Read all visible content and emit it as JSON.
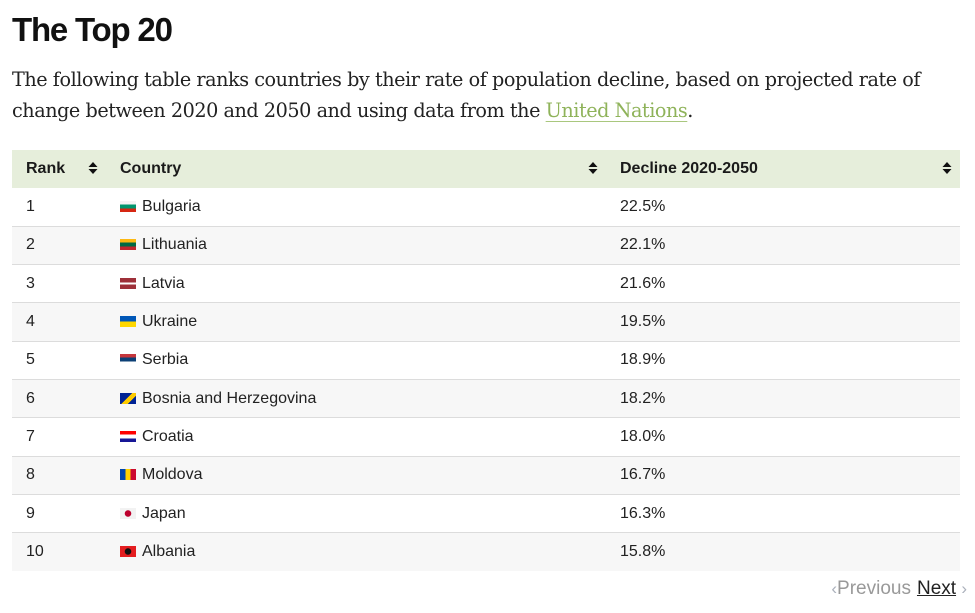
{
  "heading": "The Top 20",
  "intro": {
    "text_before": "The following table ranks countries by their rate of population decline, based on projected rate of change between 2020 and 2050 and using data from the ",
    "link_text": "United Nations",
    "text_after": "."
  },
  "colors": {
    "header_bg": "#e6eedb",
    "link": "#8fb35a"
  },
  "table": {
    "columns": [
      "Rank",
      "Country",
      "Decline 2020-2050"
    ],
    "sort_icon": "sort-up-down-icon",
    "rows": [
      {
        "rank": "1",
        "country": "Bulgaria",
        "flag": "bg",
        "decline": "22.5%"
      },
      {
        "rank": "2",
        "country": "Lithuania",
        "flag": "lt",
        "decline": "22.1%"
      },
      {
        "rank": "3",
        "country": "Latvia",
        "flag": "lv",
        "decline": "21.6%"
      },
      {
        "rank": "4",
        "country": "Ukraine",
        "flag": "ua",
        "decline": "19.5%"
      },
      {
        "rank": "5",
        "country": "Serbia",
        "flag": "rs",
        "decline": "18.9%"
      },
      {
        "rank": "6",
        "country": "Bosnia and Herzegovina",
        "flag": "ba",
        "decline": "18.2%"
      },
      {
        "rank": "7",
        "country": "Croatia",
        "flag": "hr",
        "decline": "18.0%"
      },
      {
        "rank": "8",
        "country": "Moldova",
        "flag": "md",
        "decline": "16.7%"
      },
      {
        "rank": "9",
        "country": "Japan",
        "flag": "jp",
        "decline": "16.3%"
      },
      {
        "rank": "10",
        "country": "Albania",
        "flag": "al",
        "decline": "15.8%"
      }
    ]
  },
  "pagination": {
    "previous": "Previous",
    "next": "Next"
  }
}
